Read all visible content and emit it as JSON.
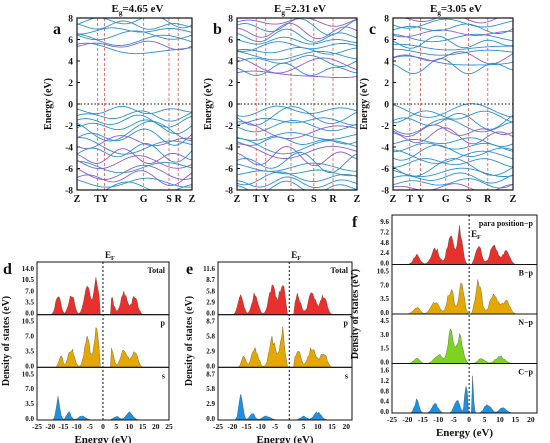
{
  "panels_top": [
    {
      "letter": "a",
      "title_prefix": "E",
      "title_sub": "g",
      "title_value": "=4.65 eV",
      "ylabel": "Energy (eV)",
      "yticks": [
        "8",
        "6",
        "4",
        "2",
        "0",
        "-2",
        "-4",
        "-6",
        "-8"
      ],
      "xticks": [
        "Z",
        "T",
        "Y",
        "G",
        "S",
        "R",
        "Z"
      ]
    },
    {
      "letter": "b",
      "title_prefix": "E",
      "title_sub": "g",
      "title_value": "=2.31 eV",
      "ylabel": "Energy (eV)",
      "yticks": [
        "8",
        "6",
        "4",
        "2",
        "0",
        "-2",
        "-4",
        "-6",
        "-8"
      ],
      "xticks": [
        "Z",
        "T",
        "Y",
        "G",
        "S",
        "R",
        "Z"
      ]
    },
    {
      "letter": "c",
      "title_prefix": "E",
      "title_sub": "g",
      "title_value": "=3.05 eV",
      "ylabel": "Energy (eV)",
      "yticks": [
        "8",
        "6",
        "4",
        "2",
        "0",
        "-2",
        "-4",
        "-6",
        "-8"
      ],
      "xticks": [
        "Z",
        "T",
        "Y",
        "G",
        "S",
        "R",
        "Z"
      ]
    }
  ],
  "panel_d": {
    "letter": "d",
    "ylabel": "Density of states (eV)",
    "xlabel": "Energy (eV)",
    "fermi": "E",
    "fermi_sub": "F",
    "xticks": [
      "-25",
      "-20",
      "-15",
      "-10",
      "-5",
      "0",
      "5",
      "10",
      "15",
      "20",
      "25"
    ],
    "subs": [
      {
        "label": "Total",
        "yticks": [
          "14.0",
          "10.5",
          "7.0",
          "3.5",
          "0.0"
        ],
        "color": "#e8302c"
      },
      {
        "label": "p",
        "yticks": [
          "10.5",
          "7.0",
          "3.5",
          "0.0"
        ],
        "color": "#e5a800"
      },
      {
        "label": "s",
        "yticks": [
          "10.5",
          "7.0",
          "3.5",
          "0.0"
        ],
        "color": "#1f8fe0"
      }
    ]
  },
  "panel_e": {
    "letter": "e",
    "ylabel": "Density of states (eV)",
    "xlabel": "Energy (eV)",
    "fermi": "E",
    "fermi_sub": "F",
    "xticks": [
      "-25",
      "-20",
      "-15",
      "-10",
      "-5",
      "0",
      "5",
      "10",
      "15",
      "20"
    ],
    "subs": [
      {
        "label": "Total",
        "yticks": [
          "11.6",
          "8.7",
          "5.8",
          "2.9",
          "0.0"
        ],
        "color": "#e8302c"
      },
      {
        "label": "p",
        "yticks": [
          "8.7",
          "5.8",
          "2.9",
          "0.0"
        ],
        "color": "#e5a800"
      },
      {
        "label": "s",
        "yticks": [
          "8.7",
          "5.8",
          "2.9",
          "0.0"
        ],
        "color": "#1f8fe0"
      }
    ]
  },
  "panel_f": {
    "letter": "f",
    "ylabel": "Density of states (eV)",
    "xlabel": "Energy (eV)",
    "fermi": "E",
    "fermi_sub": "F",
    "xticks": [
      "-25",
      "-20",
      "-15",
      "-10",
      "-5",
      "0",
      "5",
      "10",
      "15",
      "20"
    ],
    "subs": [
      {
        "label": "para position−p",
        "yticks": [
          "9.6",
          "7.2",
          "4.8",
          "2.4",
          "0.0"
        ],
        "color": "#e8302c"
      },
      {
        "label": "B−p",
        "yticks": [
          "10.5",
          "7.0",
          "3.5",
          "0.0"
        ],
        "color": "#e5a800"
      },
      {
        "label": "N−p",
        "yticks": [
          "4.5",
          "3.0",
          "1.5",
          "0.0"
        ],
        "color": "#7ed321"
      },
      {
        "label": "C−p",
        "yticks": [
          "1.6",
          "1.2",
          "0.8",
          "0.4",
          "0.0"
        ],
        "color": "#1f8fe0"
      }
    ]
  }
}
